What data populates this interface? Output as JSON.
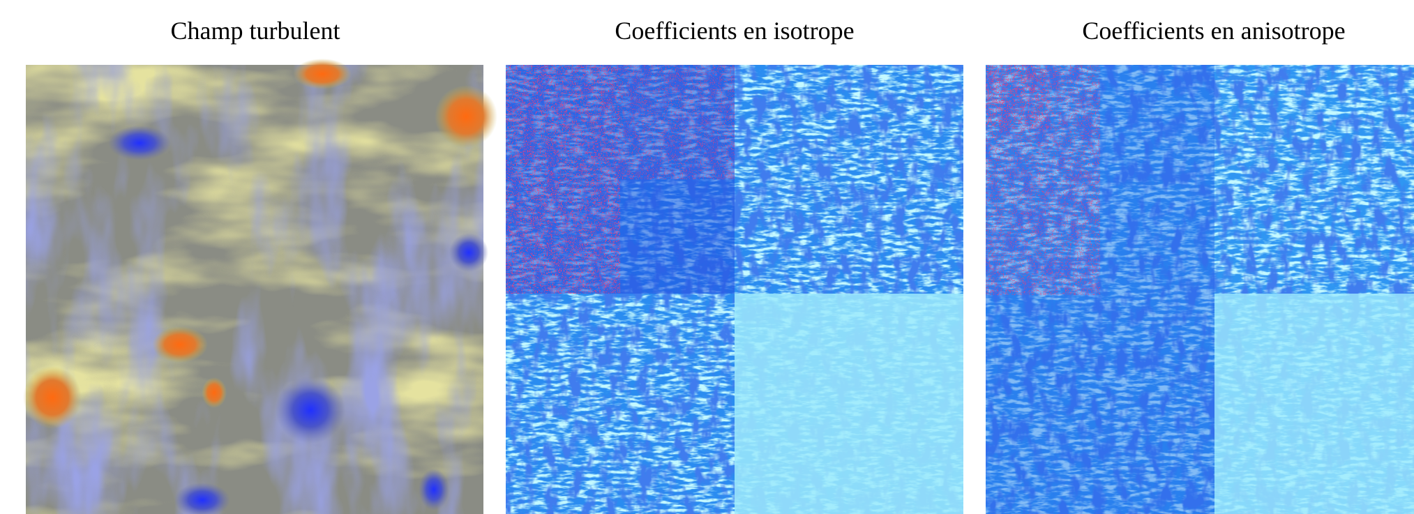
{
  "panels": [
    {
      "title": "Champ turbulent"
    },
    {
      "title": "Coefficients en isotrope"
    },
    {
      "title": "Coefficients en anisotrope"
    }
  ]
}
